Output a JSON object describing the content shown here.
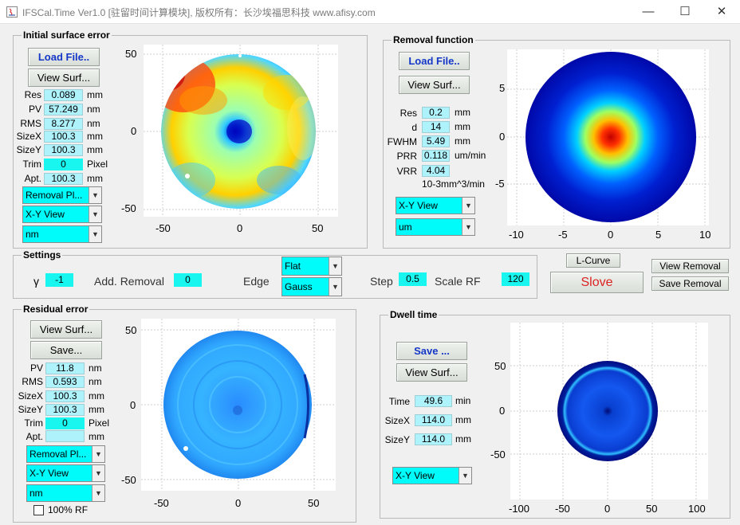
{
  "window": {
    "title": "IFSCal.Time Ver1.0 [驻留时间计算模块], 版权所有：长沙埃福思科技 www.afisy.com",
    "minimize_glyph": "—",
    "maximize_glyph": "☐",
    "close_glyph": "✕",
    "icon": "java-icon"
  },
  "initial": {
    "title": "Initial surface error",
    "load_label": "Load File..",
    "view_label": "View Surf...",
    "rows": [
      {
        "label": "Res",
        "value": "0.089",
        "unit": "mm"
      },
      {
        "label": "PV",
        "value": "57.249",
        "unit": "nm"
      },
      {
        "label": "RMS",
        "value": "8.277",
        "unit": "nm"
      },
      {
        "label": "SizeX",
        "value": "100.3",
        "unit": "mm"
      },
      {
        "label": "SizeY",
        "value": "100.3",
        "unit": "mm"
      },
      {
        "label": "Trim",
        "value": "0",
        "unit": "Pixel"
      },
      {
        "label": "Apt.",
        "value": "100.3",
        "unit": "mm"
      }
    ],
    "dropdowns": [
      "Removal Pl...",
      "X-Y View",
      "nm"
    ],
    "xticks": [
      "-50",
      "0",
      "50"
    ],
    "yticks": [
      "50",
      "0",
      "-50"
    ]
  },
  "removal": {
    "title": "Removal function",
    "load_label": "Load File..",
    "view_label": "View Surf...",
    "rows": [
      {
        "label": "Res",
        "value": "0.2",
        "unit": "mm"
      },
      {
        "label": "d",
        "value": "14",
        "unit": "mm"
      },
      {
        "label": "FWHM",
        "value": "5.49",
        "unit": "mm"
      },
      {
        "label": "PRR",
        "value": "0.118",
        "unit": "um/min"
      },
      {
        "label": "VRR",
        "value": "4.04",
        "unit": ""
      }
    ],
    "vrr_unit": "10-3mm^3/min",
    "dropdowns": [
      "X-Y View",
      "um"
    ],
    "xticks": [
      "-10",
      "-5",
      "0",
      "5",
      "10"
    ],
    "yticks": [
      "5",
      "0",
      "-5"
    ]
  },
  "settings": {
    "title": "Settings",
    "gamma_label": "γ",
    "gamma_value": "-1",
    "add_removal_label": "Add. Removal",
    "add_removal_value": "0",
    "edge_label": "Edge",
    "edge_options": [
      "Flat",
      "Gauss"
    ],
    "step_label": "Step",
    "step_value": "0.5",
    "scale_label": "Scale RF",
    "scale_value": "120"
  },
  "actions": {
    "lcurve": "L-Curve",
    "solve": "Slove",
    "view_removal": "View Removal",
    "save_removal": "Save Removal"
  },
  "residual": {
    "title": "Residual error",
    "view_label": "View Surf...",
    "save_label": "Save...",
    "rows": [
      {
        "label": "PV",
        "value": "11.8",
        "unit": "nm"
      },
      {
        "label": "RMS",
        "value": "0.593",
        "unit": "nm"
      },
      {
        "label": "SizeX",
        "value": "100.3",
        "unit": "mm"
      },
      {
        "label": "SizeY",
        "value": "100.3",
        "unit": "mm"
      },
      {
        "label": "Trim",
        "value": "0",
        "unit": "Pixel"
      },
      {
        "label": "Apt.",
        "value": "",
        "unit": "mm"
      }
    ],
    "dropdowns": [
      "Removal Pl...",
      "X-Y View",
      "nm"
    ],
    "checkbox_label": "100% RF",
    "checkbox_checked": false,
    "xticks": [
      "-50",
      "0",
      "50"
    ],
    "yticks": [
      "50",
      "0",
      "-50"
    ]
  },
  "dwell": {
    "title": "Dwell time",
    "save_label": "Save ...",
    "view_label": "View Surf...",
    "rows": [
      {
        "label": "Time",
        "value": "49.6",
        "unit": "min"
      },
      {
        "label": "SizeX",
        "value": "114.0",
        "unit": "mm"
      },
      {
        "label": "SizeY",
        "value": "114.0",
        "unit": "mm"
      }
    ],
    "dropdown": "X-Y View",
    "xticks": [
      "-100",
      "-50",
      "0",
      "50",
      "100"
    ],
    "yticks": [
      "50",
      "0",
      "-50"
    ]
  }
}
